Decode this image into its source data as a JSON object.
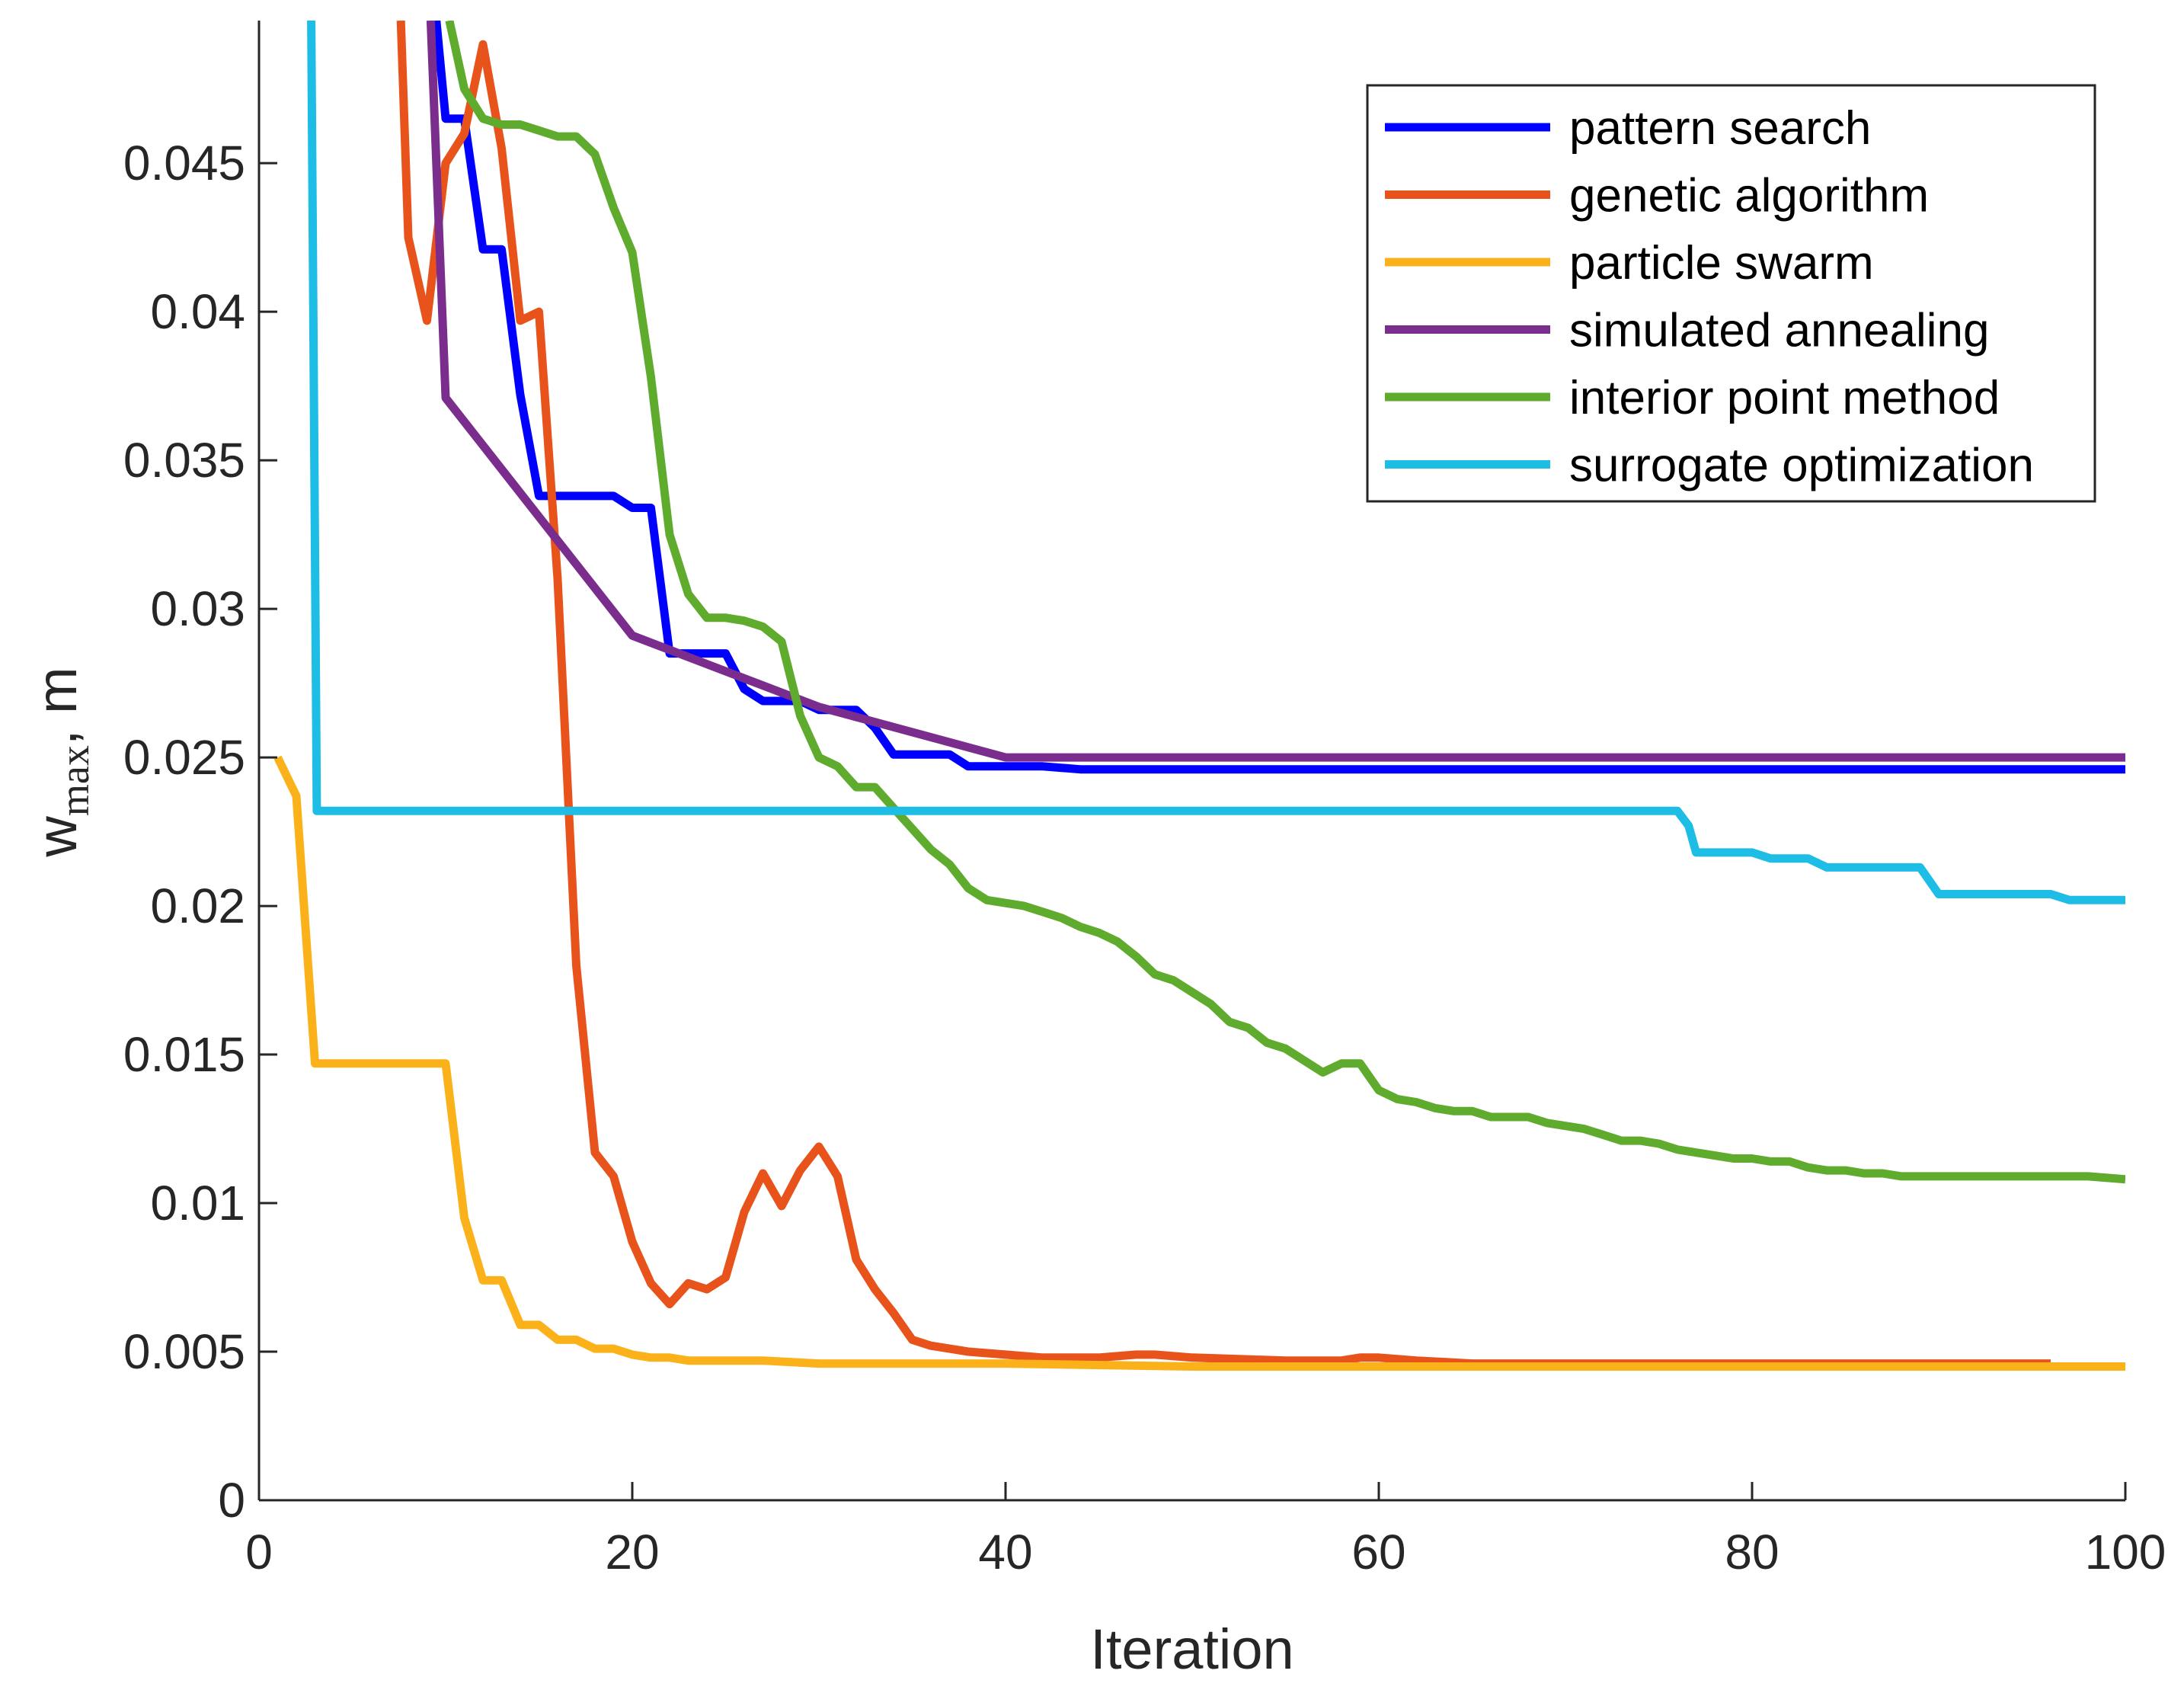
{
  "chart_data": {
    "type": "line",
    "title": "",
    "xlabel": "Iteration",
    "ylabel_main": "w",
    "ylabel_sub": "max",
    "ylabel_suffix": ", m",
    "xlim": [
      0,
      100
    ],
    "ylim": [
      0,
      0.0498
    ],
    "xticks": [
      0,
      20,
      40,
      60,
      80,
      100
    ],
    "xtick_labels": [
      "0",
      "20",
      "40",
      "60",
      "80",
      "100"
    ],
    "yticks": [
      0,
      0.005,
      0.01,
      0.015,
      0.02,
      0.025,
      0.03,
      0.035,
      0.04,
      0.045
    ],
    "ytick_labels": [
      "0",
      "0.005",
      "0.01",
      "0.015",
      "0.02",
      "0.025",
      "0.03",
      "0.035",
      "0.04",
      "0.045"
    ],
    "legend_position": "top-right",
    "grid": false,
    "series": [
      {
        "name": "pattern search",
        "color": "#0000ff",
        "x": [
          9.5,
          10,
          11,
          12,
          13,
          14,
          15,
          16,
          17,
          18,
          19,
          20,
          21,
          22,
          23,
          24,
          25,
          26,
          27,
          28,
          29,
          30,
          31,
          32,
          33,
          34,
          35,
          36,
          37,
          38,
          39,
          40,
          42,
          44,
          50,
          60,
          70,
          80,
          90,
          100
        ],
        "y": [
          0.0498,
          0.0465,
          0.0465,
          0.0421,
          0.0421,
          0.0372,
          0.0338,
          0.0338,
          0.0338,
          0.0338,
          0.0338,
          0.0334,
          0.0334,
          0.0285,
          0.0285,
          0.0285,
          0.0285,
          0.0273,
          0.0269,
          0.0269,
          0.0269,
          0.0266,
          0.0266,
          0.0266,
          0.026,
          0.0251,
          0.0251,
          0.0251,
          0.0251,
          0.0247,
          0.0247,
          0.0247,
          0.0247,
          0.0246,
          0.0246,
          0.0246,
          0.0246,
          0.0246,
          0.0246,
          0.0246
        ]
      },
      {
        "name": "genetic algorithm",
        "color": "#e8531b",
        "x": [
          7.6,
          8,
          9,
          10,
          11,
          12,
          13,
          14,
          15,
          16,
          17,
          18,
          19,
          20,
          21,
          22,
          23,
          24,
          25,
          26,
          27,
          28,
          29,
          30,
          31,
          32,
          33,
          34,
          35,
          36,
          37,
          38,
          40,
          42,
          45,
          47,
          48,
          50,
          55,
          58,
          59,
          60,
          62,
          65,
          70,
          80,
          90,
          96
        ],
        "y": [
          0.0498,
          0.0425,
          0.0397,
          0.045,
          0.046,
          0.049,
          0.0455,
          0.0397,
          0.04,
          0.031,
          0.018,
          0.0117,
          0.0109,
          0.0087,
          0.0073,
          0.0066,
          0.0073,
          0.0071,
          0.0075,
          0.0097,
          0.011,
          0.0099,
          0.0111,
          0.0119,
          0.0109,
          0.0081,
          0.0071,
          0.0063,
          0.0054,
          0.0052,
          0.0051,
          0.005,
          0.0049,
          0.0048,
          0.0048,
          0.0049,
          0.0049,
          0.0048,
          0.0047,
          0.0047,
          0.0048,
          0.0048,
          0.0047,
          0.0046,
          0.0046,
          0.0046,
          0.0046,
          0.0046
        ]
      },
      {
        "name": "particle swarm",
        "color": "#fbb21a",
        "x": [
          1,
          2,
          3,
          4,
          5,
          6,
          7,
          8,
          9,
          10,
          11,
          12,
          13,
          14,
          15,
          16,
          17,
          18,
          19,
          20,
          21,
          22,
          23,
          24,
          25,
          27,
          30,
          35,
          40,
          50,
          60,
          70,
          80,
          90,
          100
        ],
        "y": [
          0.025,
          0.0237,
          0.0147,
          0.0147,
          0.0147,
          0.0147,
          0.0147,
          0.0147,
          0.0147,
          0.0147,
          0.0095,
          0.0074,
          0.0074,
          0.0059,
          0.0059,
          0.0054,
          0.0054,
          0.0051,
          0.0051,
          0.0049,
          0.0048,
          0.0048,
          0.0047,
          0.0047,
          0.0047,
          0.0047,
          0.0046,
          0.0046,
          0.0046,
          0.0045,
          0.0045,
          0.0045,
          0.0045,
          0.0045,
          0.0045
        ]
      },
      {
        "name": "simulated annealing",
        "color": "#7b2d8e",
        "x": [
          9.2,
          10,
          20,
          30,
          40,
          50,
          60,
          70,
          80,
          90,
          100
        ],
        "y": [
          0.0498,
          0.0371,
          0.0291,
          0.0267,
          0.025,
          0.025,
          0.025,
          0.025,
          0.025,
          0.025,
          0.025
        ]
      },
      {
        "name": "interior point method",
        "color": "#5fab2e",
        "x": [
          10.2,
          11,
          12,
          13,
          14,
          15,
          16,
          17,
          18,
          19,
          20,
          21,
          22,
          23,
          24,
          25,
          26,
          27,
          28,
          29,
          30,
          31,
          32,
          33,
          34,
          35,
          36,
          37,
          38,
          39,
          40,
          41,
          42,
          43,
          44,
          45,
          46,
          47,
          48,
          49,
          50,
          51,
          52,
          53,
          54,
          55,
          56,
          57,
          58,
          59,
          60,
          61,
          62,
          63,
          64,
          65,
          66,
          67,
          68,
          69,
          70,
          71,
          72,
          73,
          74,
          75,
          76,
          77,
          78,
          79,
          80,
          81,
          82,
          83,
          84,
          85,
          86,
          87,
          88,
          89,
          90,
          92,
          94,
          96,
          98,
          100
        ],
        "y": [
          0.0498,
          0.0475,
          0.0465,
          0.0463,
          0.0463,
          0.0461,
          0.0459,
          0.0459,
          0.0453,
          0.0435,
          0.042,
          0.0378,
          0.0325,
          0.0305,
          0.0297,
          0.0297,
          0.0296,
          0.0294,
          0.0289,
          0.0264,
          0.025,
          0.0247,
          0.024,
          0.024,
          0.0233,
          0.0226,
          0.0219,
          0.0214,
          0.0206,
          0.0202,
          0.0201,
          0.02,
          0.0198,
          0.0196,
          0.0193,
          0.0191,
          0.0188,
          0.0183,
          0.0177,
          0.0175,
          0.0171,
          0.0167,
          0.0161,
          0.0159,
          0.0154,
          0.0152,
          0.0148,
          0.0144,
          0.0147,
          0.0147,
          0.0138,
          0.0135,
          0.0134,
          0.0132,
          0.0131,
          0.0131,
          0.0129,
          0.0129,
          0.0129,
          0.0127,
          0.0126,
          0.0125,
          0.0123,
          0.0121,
          0.0121,
          0.012,
          0.0118,
          0.0117,
          0.0116,
          0.0115,
          0.0115,
          0.0114,
          0.0114,
          0.0112,
          0.0111,
          0.0111,
          0.011,
          0.011,
          0.0109,
          0.0109,
          0.0109,
          0.0109,
          0.0109,
          0.0109,
          0.0109,
          0.0108
        ]
      },
      {
        "name": "surrogate optimization",
        "color": "#1dbde6",
        "x": [
          2.8,
          3.1,
          10,
          20,
          30,
          40,
          50,
          60,
          70,
          76,
          76.6,
          77,
          78,
          79,
          80,
          81,
          82,
          83,
          84,
          85,
          86,
          87,
          88,
          89,
          90,
          91,
          92,
          93,
          94,
          95,
          96,
          97,
          98,
          99,
          100
        ],
        "y": [
          0.0498,
          0.0232,
          0.0232,
          0.0232,
          0.0232,
          0.0232,
          0.0232,
          0.0232,
          0.0232,
          0.0232,
          0.0227,
          0.0218,
          0.0218,
          0.0218,
          0.0218,
          0.0216,
          0.0216,
          0.0216,
          0.0213,
          0.0213,
          0.0213,
          0.0213,
          0.0213,
          0.0213,
          0.0204,
          0.0204,
          0.0204,
          0.0204,
          0.0204,
          0.0204,
          0.0204,
          0.0202,
          0.0202,
          0.0202,
          0.0202
        ]
      }
    ]
  }
}
